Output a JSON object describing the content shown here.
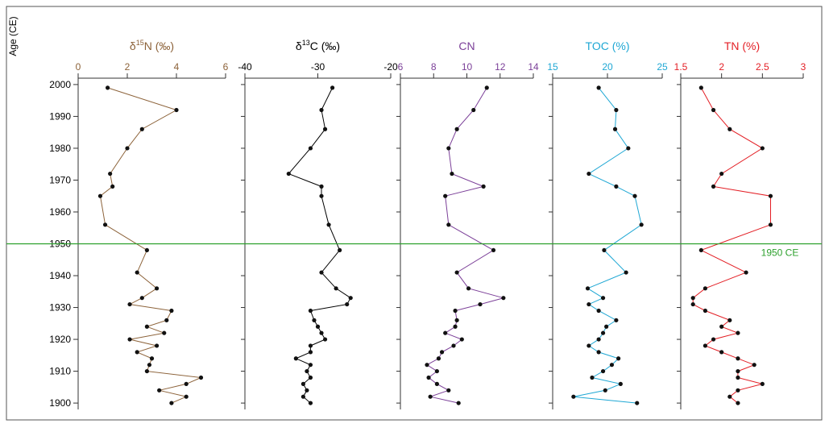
{
  "y_axis": {
    "label": "Age (CE)",
    "ticks": [
      2000,
      1990,
      1980,
      1970,
      1960,
      1950,
      1940,
      1930,
      1920,
      1910,
      1900
    ],
    "ylim": [
      1898,
      2002
    ]
  },
  "reference_line": {
    "value": 1950,
    "label": "1950 CE",
    "color": "#2ca02c"
  },
  "chart_data": [
    {
      "type": "line",
      "title": "δ15N (‰)",
      "title_parts": {
        "pre": "δ",
        "sup": "15",
        "post": "N (‰)"
      },
      "color": "#8c6239",
      "xlim": [
        0,
        6
      ],
      "x_ticks": [
        0,
        2,
        4,
        6
      ],
      "points": [
        [
          1.2,
          1999
        ],
        [
          4.0,
          1992
        ],
        [
          2.6,
          1986
        ],
        [
          2.0,
          1980
        ],
        [
          1.3,
          1972
        ],
        [
          1.4,
          1968
        ],
        [
          0.9,
          1965
        ],
        [
          1.1,
          1956
        ],
        [
          2.8,
          1948
        ],
        [
          2.4,
          1941
        ],
        [
          3.2,
          1936
        ],
        [
          2.6,
          1933
        ],
        [
          2.1,
          1931
        ],
        [
          3.8,
          1929
        ],
        [
          3.6,
          1926
        ],
        [
          2.8,
          1924
        ],
        [
          3.5,
          1922
        ],
        [
          2.1,
          1920
        ],
        [
          3.2,
          1918
        ],
        [
          2.4,
          1916
        ],
        [
          3.0,
          1914
        ],
        [
          2.9,
          1912
        ],
        [
          2.8,
          1910
        ],
        [
          5.0,
          1908
        ],
        [
          4.4,
          1906
        ],
        [
          3.3,
          1904
        ],
        [
          4.4,
          1902
        ],
        [
          3.8,
          1900
        ]
      ]
    },
    {
      "type": "line",
      "title": "δ13C (‰)",
      "title_parts": {
        "pre": "δ",
        "sup": "13",
        "post": "C (‰)"
      },
      "color": "#000000",
      "xlim": [
        -40,
        -20
      ],
      "x_ticks": [
        -40,
        -30,
        -20
      ],
      "points": [
        [
          -28.0,
          1999
        ],
        [
          -29.5,
          1992
        ],
        [
          -29.0,
          1986
        ],
        [
          -31.0,
          1980
        ],
        [
          -34.0,
          1972
        ],
        [
          -29.5,
          1968
        ],
        [
          -29.5,
          1965
        ],
        [
          -28.5,
          1956
        ],
        [
          -27.0,
          1948
        ],
        [
          -29.5,
          1941
        ],
        [
          -27.5,
          1936
        ],
        [
          -25.5,
          1933
        ],
        [
          -26.0,
          1931
        ],
        [
          -31.0,
          1929
        ],
        [
          -30.5,
          1926
        ],
        [
          -30.0,
          1924
        ],
        [
          -29.5,
          1922
        ],
        [
          -29.0,
          1920
        ],
        [
          -31.0,
          1918
        ],
        [
          -31.0,
          1916
        ],
        [
          -33.0,
          1914
        ],
        [
          -31.0,
          1912
        ],
        [
          -31.5,
          1910
        ],
        [
          -31.0,
          1908
        ],
        [
          -32.0,
          1906
        ],
        [
          -31.5,
          1904
        ],
        [
          -32.0,
          1902
        ],
        [
          -31.0,
          1900
        ]
      ]
    },
    {
      "type": "line",
      "title": "CN",
      "color": "#7b3f98",
      "xlim": [
        6,
        14
      ],
      "x_ticks": [
        6,
        8,
        10,
        12,
        14
      ],
      "points": [
        [
          11.2,
          1999
        ],
        [
          10.4,
          1992
        ],
        [
          9.4,
          1986
        ],
        [
          8.9,
          1980
        ],
        [
          9.1,
          1972
        ],
        [
          11.0,
          1968
        ],
        [
          8.7,
          1965
        ],
        [
          8.9,
          1956
        ],
        [
          11.6,
          1948
        ],
        [
          9.4,
          1941
        ],
        [
          10.1,
          1936
        ],
        [
          12.2,
          1933
        ],
        [
          10.8,
          1931
        ],
        [
          9.3,
          1929
        ],
        [
          9.4,
          1926
        ],
        [
          9.3,
          1924
        ],
        [
          8.7,
          1922
        ],
        [
          9.7,
          1920
        ],
        [
          9.2,
          1918
        ],
        [
          8.5,
          1916
        ],
        [
          8.3,
          1914
        ],
        [
          7.6,
          1912
        ],
        [
          8.2,
          1910
        ],
        [
          7.7,
          1908
        ],
        [
          8.2,
          1906
        ],
        [
          8.9,
          1904
        ],
        [
          7.8,
          1902
        ],
        [
          9.5,
          1900
        ]
      ]
    },
    {
      "type": "line",
      "title": "TOC (%)",
      "color": "#1ea7d4",
      "xlim": [
        15,
        25
      ],
      "x_ticks": [
        15,
        20,
        25
      ],
      "points": [
        [
          19.2,
          1999
        ],
        [
          20.8,
          1992
        ],
        [
          20.7,
          1986
        ],
        [
          21.9,
          1980
        ],
        [
          18.3,
          1972
        ],
        [
          20.8,
          1968
        ],
        [
          22.5,
          1965
        ],
        [
          23.1,
          1956
        ],
        [
          19.7,
          1948
        ],
        [
          21.7,
          1941
        ],
        [
          18.2,
          1936
        ],
        [
          19.6,
          1933
        ],
        [
          18.3,
          1931
        ],
        [
          19.2,
          1929
        ],
        [
          20.8,
          1926
        ],
        [
          19.9,
          1924
        ],
        [
          19.6,
          1922
        ],
        [
          19.2,
          1920
        ],
        [
          18.3,
          1918
        ],
        [
          19.2,
          1916
        ],
        [
          21.0,
          1914
        ],
        [
          20.4,
          1912
        ],
        [
          19.6,
          1910
        ],
        [
          18.6,
          1908
        ],
        [
          21.2,
          1906
        ],
        [
          19.8,
          1904
        ],
        [
          16.9,
          1902
        ],
        [
          22.7,
          1900
        ]
      ]
    },
    {
      "type": "line",
      "title": "TN (%)",
      "color": "#e31e24",
      "xlim": [
        1.5,
        3.0
      ],
      "x_ticks": [
        1.5,
        2.0,
        2.5,
        3.0
      ],
      "points": [
        [
          1.75,
          1999
        ],
        [
          1.9,
          1992
        ],
        [
          2.1,
          1986
        ],
        [
          2.5,
          1980
        ],
        [
          2.0,
          1972
        ],
        [
          1.9,
          1968
        ],
        [
          2.6,
          1965
        ],
        [
          2.6,
          1956
        ],
        [
          1.75,
          1948
        ],
        [
          2.3,
          1941
        ],
        [
          1.8,
          1936
        ],
        [
          1.65,
          1933
        ],
        [
          1.65,
          1931
        ],
        [
          1.8,
          1929
        ],
        [
          2.1,
          1926
        ],
        [
          2.0,
          1924
        ],
        [
          2.2,
          1922
        ],
        [
          1.9,
          1920
        ],
        [
          1.8,
          1918
        ],
        [
          2.0,
          1916
        ],
        [
          2.2,
          1914
        ],
        [
          2.4,
          1912
        ],
        [
          2.2,
          1910
        ],
        [
          2.2,
          1908
        ],
        [
          2.5,
          1906
        ],
        [
          2.2,
          1904
        ],
        [
          2.1,
          1902
        ],
        [
          2.2,
          1900
        ]
      ]
    }
  ]
}
